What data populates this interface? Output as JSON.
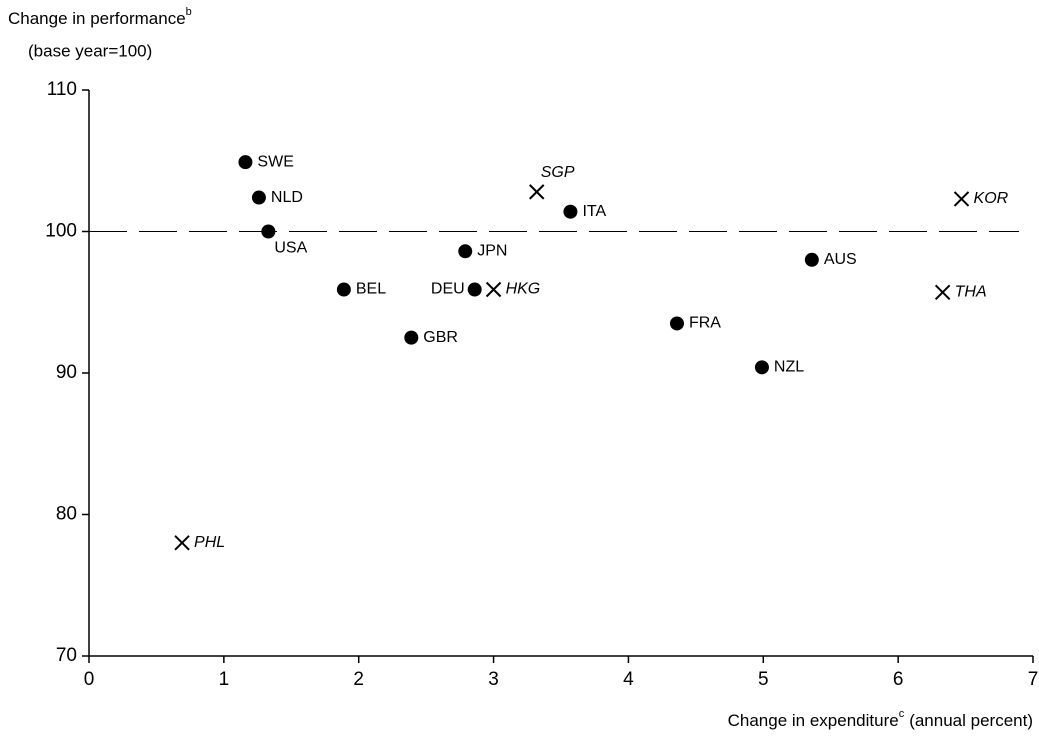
{
  "chart_data": {
    "type": "scatter",
    "y_label": "Change in performance",
    "y_label_sup": "b",
    "y_label_2": "(base year=100)",
    "x_label": "Change in expenditure",
    "x_label_sup": "c",
    "x_label_2": "(annual percent)",
    "xlim": [
      0,
      7
    ],
    "xticks": [
      0,
      1,
      2,
      3,
      4,
      5,
      6,
      7
    ],
    "ylim": [
      70,
      110
    ],
    "yticks": [
      70,
      80,
      90,
      100,
      110
    ],
    "reference_line": 100,
    "reference_style": "dashed",
    "series": [
      {
        "marker": "circle",
        "color": "#000000",
        "label_style": "normal",
        "labels": [
          "SWE",
          "NLD",
          "USA",
          "BEL",
          "GBR",
          "JPN",
          "DEU",
          "ITA",
          "FRA",
          "NZL",
          "AUS"
        ],
        "label_pos": [
          "right",
          "right",
          "below",
          "right",
          "right",
          "right",
          "left",
          "right",
          "right",
          "right",
          "right"
        ],
        "x": [
          1.16,
          1.26,
          1.33,
          1.89,
          2.39,
          2.79,
          2.86,
          3.57,
          4.36,
          4.99,
          5.36
        ],
        "values": [
          104.9,
          102.4,
          100.0,
          95.9,
          92.5,
          98.6,
          95.9,
          101.4,
          93.5,
          90.4,
          98.0
        ]
      },
      {
        "marker": "cross",
        "color": "#000000",
        "label_style": "italic",
        "labels": [
          "PHL",
          "SGP",
          "HKG",
          "KOR",
          "THA"
        ],
        "label_pos": [
          "right",
          "above",
          "right",
          "right",
          "right"
        ],
        "x": [
          0.69,
          3.32,
          3.0,
          6.47,
          6.33
        ],
        "values": [
          78.0,
          102.8,
          95.9,
          102.3,
          95.7
        ]
      }
    ]
  }
}
